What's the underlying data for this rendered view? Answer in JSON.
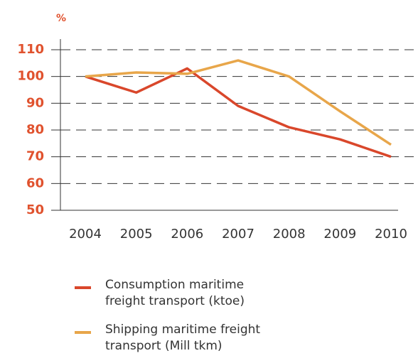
{
  "chart_data": {
    "type": "line",
    "y_label": "%",
    "categories": [
      "2004",
      "2005",
      "2006",
      "2007",
      "2008",
      "2009",
      "2010"
    ],
    "series": [
      {
        "name": "Consumption maritime freight transport (ktoe)",
        "color": "#d9472b",
        "values": [
          100,
          94,
          103,
          89,
          81,
          76.5,
          70
        ]
      },
      {
        "name": "Shipping maritime freight transport (Mill tkm)",
        "color": "#e8a64a",
        "values": [
          100,
          101.5,
          101,
          106,
          100,
          87,
          74.5
        ]
      }
    ],
    "ylim": [
      50,
      110
    ],
    "yticks": [
      50,
      60,
      70,
      80,
      90,
      100,
      110
    ],
    "grid": true,
    "legend": "bottom"
  }
}
